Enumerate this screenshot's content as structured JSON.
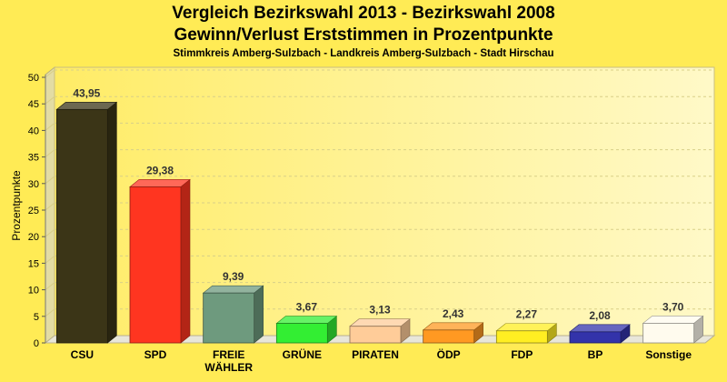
{
  "chart_data": {
    "type": "bar",
    "title": "Vergleich Bezirkswahl 2013 - Bezirkswahl 2008",
    "subtitle": "Gewinn/Verlust Erststimmen in Prozentpunkte",
    "subtitle2": "Stimmkreis Amberg-Sulzbach - Landkreis Amberg-Sulzbach - Stadt Hirschau",
    "xlabel": "",
    "ylabel": "Prozentpunkte",
    "ylim": [
      0,
      50
    ],
    "yticks": [
      0,
      5,
      10,
      15,
      20,
      25,
      30,
      35,
      40,
      45,
      50
    ],
    "grid": true,
    "categories": [
      "CSU",
      "SPD",
      "FREIE WÄHLER",
      "GRÜNE",
      "PIRATEN",
      "ÖDP",
      "FDP",
      "BP",
      "Sonstige"
    ],
    "category_lines": [
      [
        "CSU"
      ],
      [
        "SPD"
      ],
      [
        "FREIE",
        "WÄHLER"
      ],
      [
        "GRÜNE"
      ],
      [
        "PIRATEN"
      ],
      [
        "ÖDP"
      ],
      [
        "FDP"
      ],
      [
        "BP"
      ],
      [
        "Sonstige"
      ]
    ],
    "values": [
      43.95,
      29.38,
      9.39,
      3.67,
      3.13,
      2.43,
      2.27,
      2.08,
      3.7
    ],
    "value_labels": [
      "43,95",
      "29,38",
      "9,39",
      "3,67",
      "3,13",
      "2,43",
      "2,27",
      "2,08",
      "3,70"
    ],
    "colors": [
      "#3B3517",
      "#FF3520",
      "#6E9A7E",
      "#33EE33",
      "#FFCC99",
      "#FF9922",
      "#FFEE22",
      "#3333AA",
      "#FFFBEE"
    ]
  }
}
